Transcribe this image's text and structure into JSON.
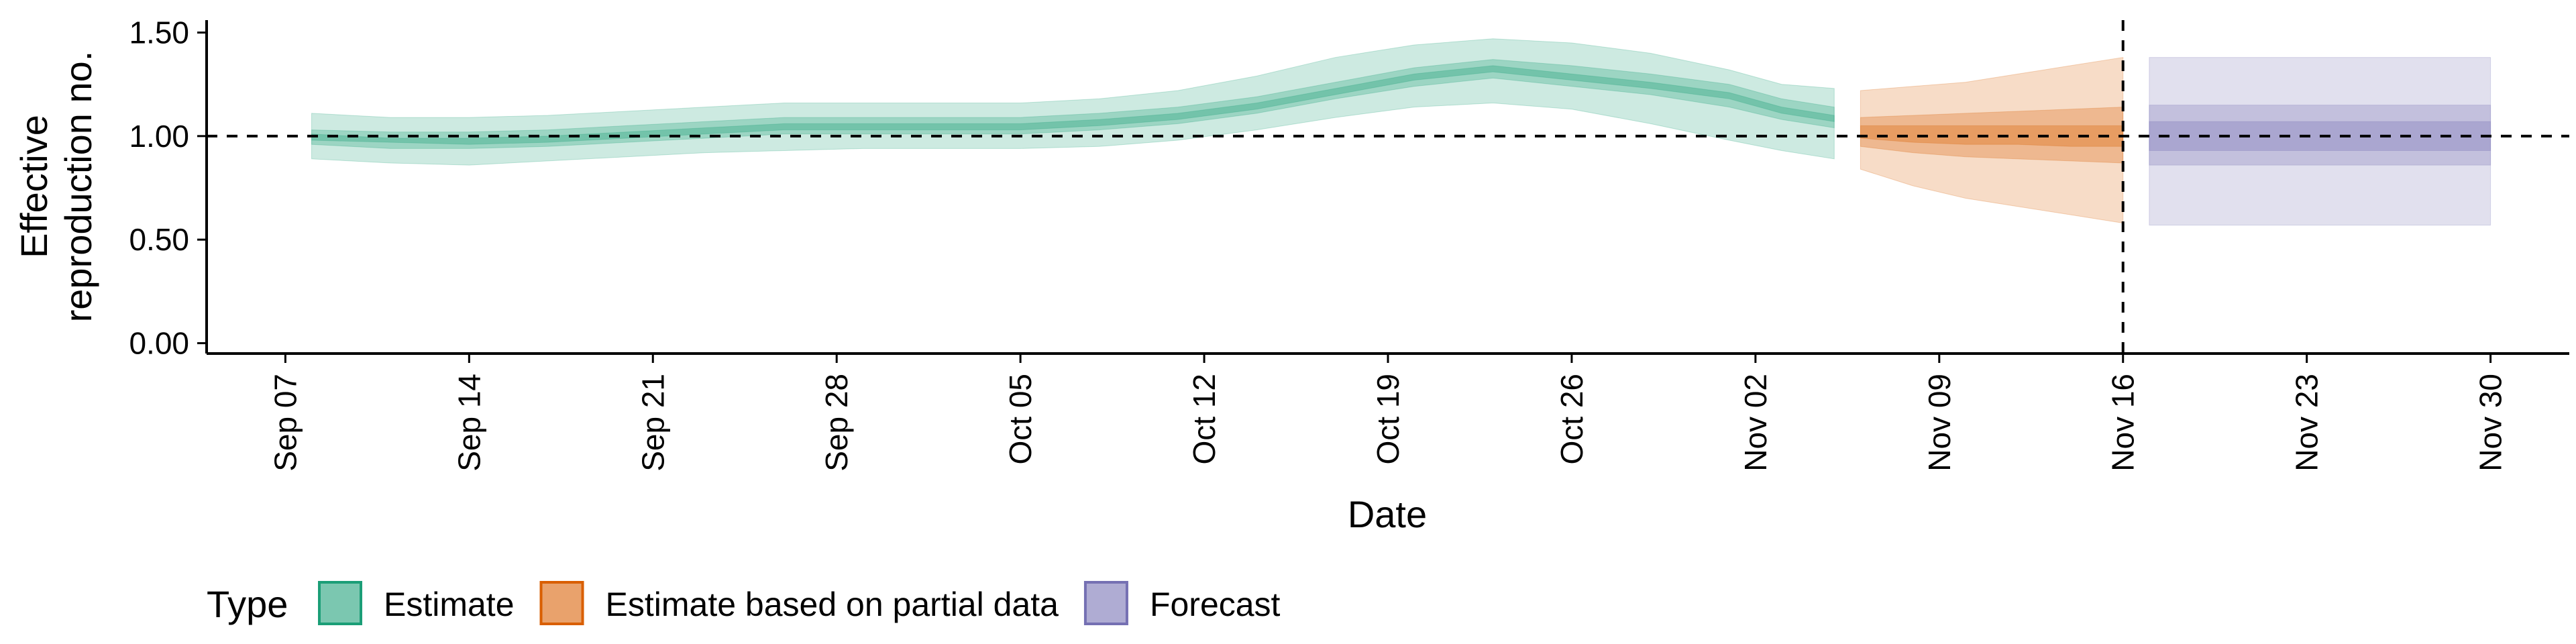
{
  "chart_data": {
    "type": "area",
    "title": "",
    "xlabel": "Date",
    "ylabel": [
      "Effective",
      "reproduction no."
    ],
    "y_ticks": [
      0.0,
      0.5,
      1.0,
      1.5
    ],
    "y_tick_labels": [
      "0.00",
      "0.50",
      "1.00",
      "1.50"
    ],
    "ylim": [
      -0.05,
      1.56
    ],
    "x_ticks": [
      "2020-09-07",
      "2020-09-14",
      "2020-09-21",
      "2020-09-28",
      "2020-10-05",
      "2020-10-12",
      "2020-10-19",
      "2020-10-26",
      "2020-11-02",
      "2020-11-09",
      "2020-11-16",
      "2020-11-23",
      "2020-11-30"
    ],
    "x_tick_labels": [
      "Sep 07",
      "Sep 14",
      "Sep 21",
      "Sep 28",
      "Oct 05",
      "Oct 12",
      "Oct 19",
      "Oct 26",
      "Nov 02",
      "Nov 09",
      "Nov 16",
      "Nov 23",
      "Nov 30"
    ],
    "xlim": [
      "2020-09-04",
      "2020-12-03"
    ],
    "reference_hline": 1.0,
    "reference_vline": "2020-11-16",
    "grid": false,
    "legend": {
      "title": "Type",
      "position": "bottom-left",
      "entries": [
        {
          "label": "Estimate",
          "fill": "#1b9e77",
          "stroke": "#1b9e77"
        },
        {
          "label": "Estimate based on partial data",
          "fill": "#d95f02",
          "stroke": "#d95f02"
        },
        {
          "label": "Forecast",
          "fill": "#7570b3",
          "stroke": "#7570b3"
        }
      ]
    },
    "series": [
      {
        "name": "Estimate",
        "color": "#1b9e77",
        "x": [
          "2020-09-08",
          "2020-09-11",
          "2020-09-14",
          "2020-09-17",
          "2020-09-20",
          "2020-09-23",
          "2020-09-26",
          "2020-09-29",
          "2020-10-02",
          "2020-10-05",
          "2020-10-08",
          "2020-10-11",
          "2020-10-14",
          "2020-10-17",
          "2020-10-20",
          "2020-10-23",
          "2020-10-26",
          "2020-10-29",
          "2020-11-01",
          "2020-11-03",
          "2020-11-05"
        ],
        "median": [
          1.0,
          0.98,
          0.98,
          0.99,
          1.01,
          1.03,
          1.05,
          1.05,
          1.05,
          1.05,
          1.07,
          1.1,
          1.15,
          1.22,
          1.29,
          1.33,
          1.29,
          1.25,
          1.2,
          1.13,
          1.09
        ],
        "lower_90": [
          0.89,
          0.87,
          0.86,
          0.88,
          0.9,
          0.92,
          0.93,
          0.94,
          0.94,
          0.94,
          0.95,
          0.98,
          1.03,
          1.09,
          1.14,
          1.16,
          1.13,
          1.06,
          0.98,
          0.93,
          0.89
        ],
        "upper_90": [
          1.11,
          1.09,
          1.09,
          1.1,
          1.12,
          1.14,
          1.16,
          1.16,
          1.16,
          1.16,
          1.18,
          1.22,
          1.29,
          1.38,
          1.44,
          1.47,
          1.45,
          1.4,
          1.32,
          1.25,
          1.23
        ],
        "lower_50": [
          0.96,
          0.94,
          0.94,
          0.95,
          0.97,
          0.99,
          1.01,
          1.01,
          1.01,
          1.01,
          1.03,
          1.06,
          1.11,
          1.18,
          1.24,
          1.28,
          1.24,
          1.2,
          1.14,
          1.08,
          1.04
        ],
        "upper_50": [
          1.03,
          1.02,
          1.02,
          1.03,
          1.05,
          1.07,
          1.09,
          1.09,
          1.09,
          1.09,
          1.11,
          1.14,
          1.19,
          1.26,
          1.33,
          1.37,
          1.34,
          1.3,
          1.25,
          1.18,
          1.14
        ],
        "lower_20": [
          0.98,
          0.97,
          0.96,
          0.97,
          0.99,
          1.01,
          1.03,
          1.03,
          1.03,
          1.03,
          1.05,
          1.08,
          1.13,
          1.2,
          1.27,
          1.31,
          1.27,
          1.23,
          1.18,
          1.11,
          1.07
        ],
        "upper_20": [
          1.01,
          0.99,
          0.99,
          1.0,
          1.02,
          1.04,
          1.06,
          1.06,
          1.06,
          1.06,
          1.08,
          1.11,
          1.16,
          1.23,
          1.3,
          1.34,
          1.3,
          1.26,
          1.21,
          1.14,
          1.1
        ]
      },
      {
        "name": "Estimate based on partial data",
        "color": "#d95f02",
        "x": [
          "2020-11-06",
          "2020-11-08",
          "2020-11-10",
          "2020-11-12",
          "2020-11-14",
          "2020-11-16"
        ],
        "median": [
          1.02,
          1.01,
          1.0,
          1.0,
          1.0,
          1.0
        ],
        "lower_90": [
          0.84,
          0.76,
          0.7,
          0.66,
          0.62,
          0.58
        ],
        "upper_90": [
          1.22,
          1.24,
          1.26,
          1.3,
          1.34,
          1.38
        ],
        "lower_50": [
          0.95,
          0.92,
          0.9,
          0.89,
          0.88,
          0.87
        ],
        "upper_50": [
          1.09,
          1.1,
          1.11,
          1.12,
          1.13,
          1.14
        ],
        "lower_20": [
          0.99,
          0.97,
          0.96,
          0.96,
          0.95,
          0.95
        ],
        "upper_20": [
          1.05,
          1.05,
          1.05,
          1.05,
          1.05,
          1.05
        ]
      },
      {
        "name": "Forecast",
        "color": "#7570b3",
        "x": [
          "2020-11-17",
          "2020-11-30"
        ],
        "median": [
          1.0,
          1.0
        ],
        "lower_90": [
          0.57,
          0.57
        ],
        "upper_90": [
          1.38,
          1.38
        ],
        "lower_50": [
          0.86,
          0.86
        ],
        "upper_50": [
          1.15,
          1.15
        ],
        "lower_20": [
          0.93,
          0.93
        ],
        "upper_20": [
          1.07,
          1.07
        ]
      }
    ]
  }
}
